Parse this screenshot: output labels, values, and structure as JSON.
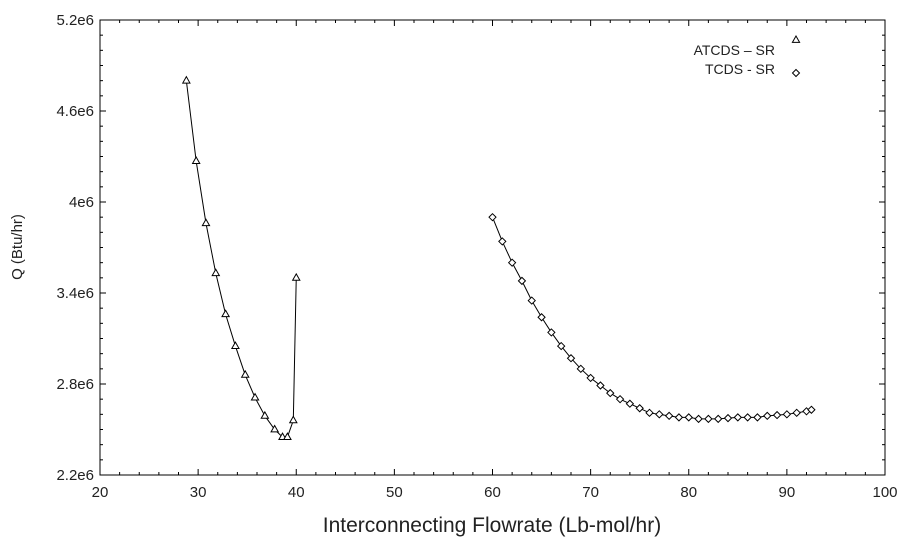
{
  "chart_data": {
    "type": "line",
    "title": "",
    "xlabel": "Interconnecting Flowrate (Lb-mol/hr)",
    "ylabel": "Q (Btu/hr)",
    "xlim": [
      20,
      100
    ],
    "ylim": [
      2200000,
      5200000
    ],
    "x_ticks": [
      20,
      30,
      40,
      50,
      60,
      70,
      80,
      90,
      100
    ],
    "x_tick_labels": [
      "20",
      "30",
      "40",
      "50",
      "60",
      "70",
      "80",
      "90",
      "100"
    ],
    "y_ticks": [
      2200000,
      2800000,
      3400000,
      4000000,
      4600000,
      5200000
    ],
    "y_tick_labels": [
      "2.2e6",
      "2.8e6",
      "3.4e6",
      "4e6",
      "4.6e6",
      "5.2e6"
    ],
    "grid": false,
    "legend_position": "top-right",
    "series": [
      {
        "name": "ATCDS – SR",
        "marker": "triangle",
        "x": [
          28.8,
          29.8,
          30.8,
          31.8,
          32.8,
          33.8,
          34.8,
          35.8,
          36.8,
          37.8,
          38.6,
          39.1,
          39.7,
          40.0
        ],
        "y": [
          4800000,
          4270000,
          3860000,
          3530000,
          3260000,
          3050000,
          2860000,
          2710000,
          2590000,
          2500000,
          2450000,
          2450000,
          2560000,
          3500000
        ]
      },
      {
        "name": "TCDS - SR",
        "marker": "diamond",
        "x": [
          60,
          61,
          62,
          63,
          64,
          65,
          66,
          67,
          68,
          69,
          70,
          71,
          72,
          73,
          74,
          75,
          76,
          77,
          78,
          79,
          80,
          81,
          82,
          83,
          84,
          85,
          86,
          87,
          88,
          89,
          90,
          91,
          92,
          92.5
        ],
        "y": [
          3900000,
          3740000,
          3600000,
          3480000,
          3350000,
          3240000,
          3140000,
          3050000,
          2970000,
          2900000,
          2840000,
          2790000,
          2740000,
          2700000,
          2670000,
          2640000,
          2610000,
          2600000,
          2590000,
          2580000,
          2580000,
          2570000,
          2570000,
          2570000,
          2575000,
          2580000,
          2580000,
          2580000,
          2590000,
          2595000,
          2600000,
          2610000,
          2620000,
          2630000
        ]
      }
    ]
  }
}
